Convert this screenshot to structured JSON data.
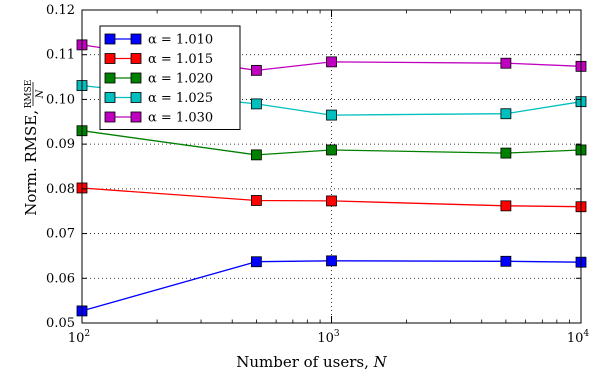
{
  "chart_data": {
    "type": "line",
    "x_scale": "log",
    "x": [
      100,
      500,
      1000,
      5000,
      10000
    ],
    "xlim": [
      100,
      10000
    ],
    "ylim": [
      0.05,
      0.12
    ],
    "x_ticks": [
      100,
      1000,
      10000
    ],
    "x_tick_labels": [
      {
        "base": "10",
        "exp": "2"
      },
      {
        "base": "10",
        "exp": "3"
      },
      {
        "base": "10",
        "exp": "4"
      }
    ],
    "y_ticks": [
      0.05,
      0.06,
      0.07,
      0.08,
      0.09,
      0.1,
      0.11,
      0.12
    ],
    "y_tick_labels": [
      "0.05",
      "0.06",
      "0.07",
      "0.08",
      "0.09",
      "0.10",
      "0.11",
      "0.12"
    ],
    "xlabel": {
      "text": "Number of users, ",
      "var": "N"
    },
    "ylabel": {
      "text": "Norm. RMSE, ",
      "frac_num": "RMSE",
      "frac_den": "N"
    },
    "grid": true,
    "grid_style": "dotted",
    "legend_position": "top-left",
    "series": [
      {
        "name": "α = 1.010",
        "color": "#0000ff",
        "values": [
          0.0527,
          0.0637,
          0.0639,
          0.0638,
          0.0636
        ]
      },
      {
        "name": "α = 1.015",
        "color": "#ff0000",
        "values": [
          0.0802,
          0.0774,
          0.0773,
          0.0762,
          0.076
        ]
      },
      {
        "name": "α = 1.020",
        "color": "#008000",
        "values": [
          0.093,
          0.0876,
          0.0887,
          0.088,
          0.0887
        ]
      },
      {
        "name": "α = 1.025",
        "color": "#00bfbf",
        "values": [
          0.1031,
          0.099,
          0.0965,
          0.0968,
          0.0995
        ]
      },
      {
        "name": "α = 1.030",
        "color": "#bf00bf",
        "values": [
          0.1122,
          0.1065,
          0.1084,
          0.1081,
          0.1074
        ]
      }
    ]
  }
}
